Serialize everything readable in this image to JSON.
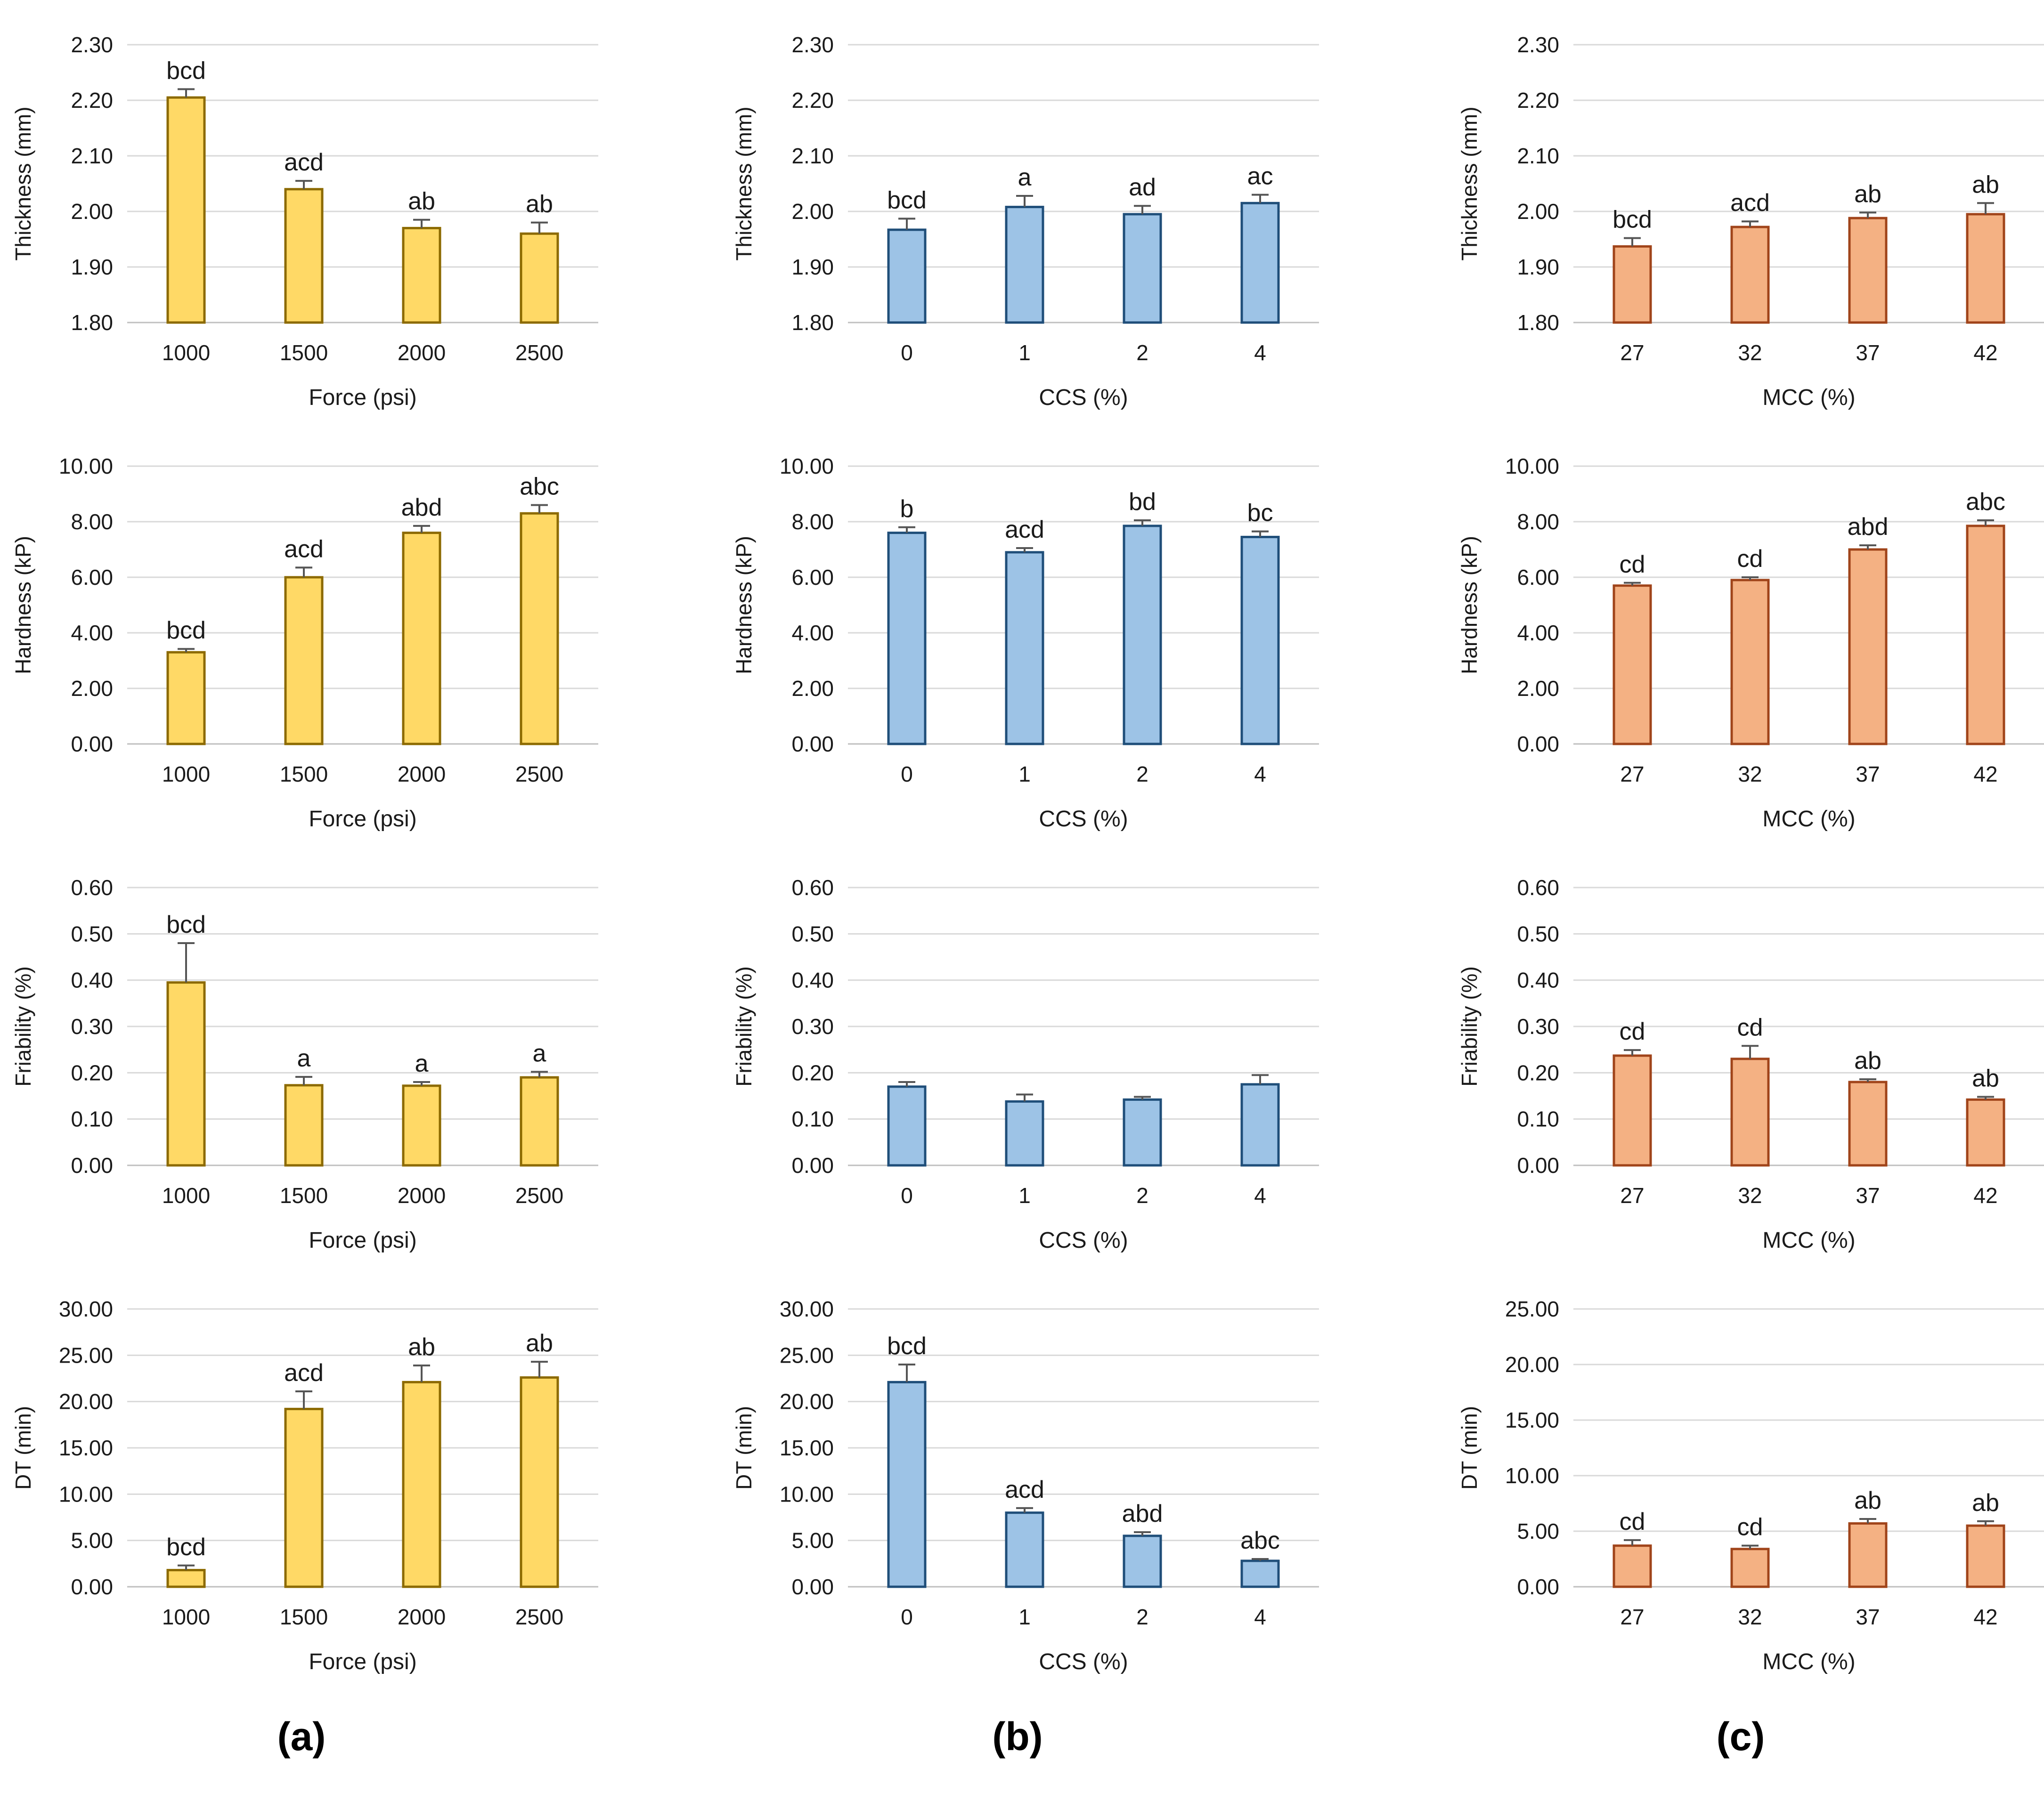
{
  "chart_data": [
    {
      "type": "bar",
      "column": "a",
      "xlabel": "Force (psi)",
      "ylabel": "Thickness (mm)",
      "categories": [
        "1000",
        "1500",
        "2000",
        "2500"
      ],
      "values": [
        2.205,
        2.04,
        1.97,
        1.96
      ],
      "errors": [
        0.015,
        0.015,
        0.015,
        0.02
      ],
      "annotations": [
        "bcd",
        "acd",
        "ab",
        "ab"
      ],
      "ylim": [
        1.8,
        2.3
      ],
      "yticks": [
        "1.80",
        "1.90",
        "2.00",
        "2.10",
        "2.20",
        "2.30"
      ],
      "grid": true
    },
    {
      "type": "bar",
      "column": "b",
      "xlabel": "CCS (%)",
      "ylabel": "Thickness (mm)",
      "categories": [
        "0",
        "1",
        "2",
        "4"
      ],
      "values": [
        1.967,
        2.008,
        1.995,
        2.015
      ],
      "errors": [
        0.02,
        0.02,
        0.015,
        0.015
      ],
      "annotations": [
        "bcd",
        "a",
        "ad",
        "ac"
      ],
      "ylim": [
        1.8,
        2.3
      ],
      "yticks": [
        "1.80",
        "1.90",
        "2.00",
        "2.10",
        "2.20",
        "2.30"
      ],
      "grid": true
    },
    {
      "type": "bar",
      "column": "c",
      "xlabel": "MCC (%)",
      "ylabel": "Thickness (mm)",
      "categories": [
        "27",
        "32",
        "37",
        "42"
      ],
      "values": [
        1.937,
        1.972,
        1.988,
        1.995
      ],
      "errors": [
        0.015,
        0.01,
        0.01,
        0.02
      ],
      "annotations": [
        "bcd",
        "acd",
        "ab",
        "ab"
      ],
      "ylim": [
        1.8,
        2.3
      ],
      "yticks": [
        "1.80",
        "1.90",
        "2.00",
        "2.10",
        "2.20",
        "2.30"
      ],
      "grid": true
    },
    {
      "type": "bar",
      "column": "a",
      "xlabel": "Force (psi)",
      "ylabel": "Hardness (kP)",
      "categories": [
        "1000",
        "1500",
        "2000",
        "2500"
      ],
      "values": [
        3.3,
        6.0,
        7.6,
        8.3
      ],
      "errors": [
        0.12,
        0.35,
        0.25,
        0.3
      ],
      "annotations": [
        "bcd",
        "acd",
        "abd",
        "abc"
      ],
      "ylim": [
        0,
        10
      ],
      "yticks": [
        "0.00",
        "2.00",
        "4.00",
        "6.00",
        "8.00",
        "10.00"
      ],
      "grid": true
    },
    {
      "type": "bar",
      "column": "b",
      "xlabel": "CCS (%)",
      "ylabel": "Hardness (kP)",
      "categories": [
        "0",
        "1",
        "2",
        "4"
      ],
      "values": [
        7.6,
        6.9,
        7.85,
        7.45
      ],
      "errors": [
        0.2,
        0.15,
        0.2,
        0.2
      ],
      "annotations": [
        "b",
        "acd",
        "bd",
        "bc"
      ],
      "ylim": [
        0,
        10
      ],
      "yticks": [
        "0.00",
        "2.00",
        "4.00",
        "6.00",
        "8.00",
        "10.00"
      ],
      "grid": true
    },
    {
      "type": "bar",
      "column": "c",
      "xlabel": "MCC (%)",
      "ylabel": "Hardness (kP)",
      "categories": [
        "27",
        "32",
        "37",
        "42"
      ],
      "values": [
        5.7,
        5.9,
        7.0,
        7.85
      ],
      "errors": [
        0.1,
        0.1,
        0.15,
        0.2
      ],
      "annotations": [
        "cd",
        "cd",
        "abd",
        "abc"
      ],
      "ylim": [
        0,
        10
      ],
      "yticks": [
        "0.00",
        "2.00",
        "4.00",
        "6.00",
        "8.00",
        "10.00"
      ],
      "grid": true
    },
    {
      "type": "bar",
      "column": "a",
      "xlabel": "Force (psi)",
      "ylabel": "Friability (%)",
      "categories": [
        "1000",
        "1500",
        "2000",
        "2500"
      ],
      "values": [
        0.395,
        0.173,
        0.172,
        0.19
      ],
      "errors": [
        0.085,
        0.018,
        0.008,
        0.012
      ],
      "annotations": [
        "bcd",
        "a",
        "a",
        "a"
      ],
      "ylim": [
        0,
        0.6
      ],
      "yticks": [
        "0.00",
        "0.10",
        "0.20",
        "0.30",
        "0.40",
        "0.50",
        "0.60"
      ],
      "grid": true
    },
    {
      "type": "bar",
      "column": "b",
      "xlabel": "CCS (%)",
      "ylabel": "Friability (%)",
      "categories": [
        "0",
        "1",
        "2",
        "4"
      ],
      "values": [
        0.17,
        0.138,
        0.142,
        0.175
      ],
      "errors": [
        0.01,
        0.015,
        0.006,
        0.02
      ],
      "annotations": [
        "",
        "",
        "",
        ""
      ],
      "ylim": [
        0,
        0.6
      ],
      "yticks": [
        "0.00",
        "0.10",
        "0.20",
        "0.30",
        "0.40",
        "0.50",
        "0.60"
      ],
      "grid": true
    },
    {
      "type": "bar",
      "column": "c",
      "xlabel": "MCC (%)",
      "ylabel": "Friability (%)",
      "categories": [
        "27",
        "32",
        "37",
        "42"
      ],
      "values": [
        0.237,
        0.23,
        0.18,
        0.142
      ],
      "errors": [
        0.012,
        0.028,
        0.006,
        0.006
      ],
      "annotations": [
        "cd",
        "cd",
        "ab",
        "ab"
      ],
      "ylim": [
        0,
        0.6
      ],
      "yticks": [
        "0.00",
        "0.10",
        "0.20",
        "0.30",
        "0.40",
        "0.50",
        "0.60"
      ],
      "grid": true
    },
    {
      "type": "bar",
      "column": "a",
      "xlabel": "Force (psi)",
      "ylabel": "DT (min)",
      "categories": [
        "1000",
        "1500",
        "2000",
        "2500"
      ],
      "values": [
        1.8,
        19.2,
        22.1,
        22.6
      ],
      "errors": [
        0.5,
        1.9,
        1.8,
        1.7
      ],
      "annotations": [
        "bcd",
        "acd",
        "ab",
        "ab"
      ],
      "ylim": [
        0,
        30
      ],
      "yticks": [
        "0.00",
        "5.00",
        "10.00",
        "15.00",
        "20.00",
        "25.00",
        "30.00"
      ],
      "grid": true
    },
    {
      "type": "bar",
      "column": "b",
      "xlabel": "CCS (%)",
      "ylabel": "DT (min)",
      "categories": [
        "0",
        "1",
        "2",
        "4"
      ],
      "values": [
        22.1,
        8.0,
        5.5,
        2.8
      ],
      "errors": [
        1.9,
        0.5,
        0.4,
        0.2
      ],
      "annotations": [
        "bcd",
        "acd",
        "abd",
        "abc"
      ],
      "ylim": [
        0,
        30
      ],
      "yticks": [
        "0.00",
        "5.00",
        "10.00",
        "15.00",
        "20.00",
        "25.00",
        "30.00"
      ],
      "grid": true
    },
    {
      "type": "bar",
      "column": "c",
      "xlabel": "MCC (%)",
      "ylabel": "DT (min)",
      "categories": [
        "27",
        "32",
        "37",
        "42"
      ],
      "values": [
        3.7,
        3.4,
        5.7,
        5.5
      ],
      "errors": [
        0.5,
        0.3,
        0.4,
        0.4
      ],
      "annotations": [
        "cd",
        "cd",
        "ab",
        "ab"
      ],
      "ylim": [
        0,
        25
      ],
      "yticks": [
        "0.00",
        "5.00",
        "10.00",
        "15.00",
        "20.00",
        "25.00"
      ],
      "grid": true
    }
  ],
  "panel_labels": {
    "a": "(a)",
    "b": "(b)",
    "c": "(c)"
  },
  "colors": {
    "a": {
      "fill": "#FFD966",
      "stroke": "#8C6A00"
    },
    "b": {
      "fill": "#9DC3E6",
      "stroke": "#1F4E79"
    },
    "c": {
      "fill": "#F4B183",
      "stroke": "#A0441A"
    },
    "grid": "#D9D9D9",
    "axis": "#BFBFBF",
    "text": "#1a1a1a",
    "error": "#555555"
  }
}
